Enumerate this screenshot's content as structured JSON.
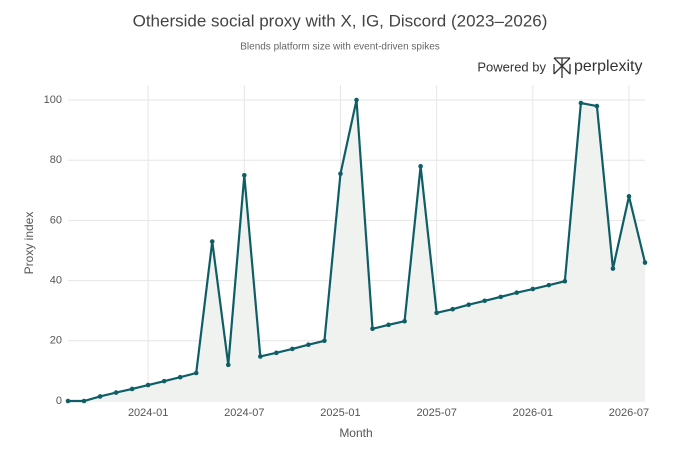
{
  "chart_data": {
    "type": "line",
    "title": "Otherside social proxy with X, IG, Discord (2023–2026)",
    "subtitle": "Blends platform size with event-driven spikes",
    "branding": {
      "prefix": "Powered by",
      "name": "perplexity"
    },
    "x_label": "Month",
    "y_label": "Proxy index",
    "x": [
      "2023-08",
      "2023-09",
      "2023-10",
      "2023-11",
      "2023-12",
      "2024-01",
      "2024-02",
      "2024-03",
      "2024-04",
      "2024-05",
      "2024-06",
      "2024-07",
      "2024-08",
      "2024-09",
      "2024-10",
      "2024-11",
      "2024-12",
      "2025-01",
      "2025-02",
      "2025-03",
      "2025-04",
      "2025-05",
      "2025-06",
      "2025-07",
      "2025-08",
      "2025-09",
      "2025-10",
      "2025-11",
      "2025-12",
      "2026-01",
      "2026-02",
      "2026-03",
      "2026-04",
      "2026-05",
      "2026-06",
      "2026-07",
      "2026-08"
    ],
    "series": [
      {
        "name": "Proxy index",
        "color": "#0f5e66",
        "fill": "#f0f2f0",
        "values": [
          0,
          0,
          1.5,
          2.8,
          4,
          5.3,
          6.6,
          7.9,
          9.3,
          53,
          12,
          75,
          14.8,
          16,
          17.3,
          18.7,
          20,
          75.5,
          100,
          24,
          25.3,
          26.5,
          78,
          29.3,
          30.5,
          32,
          33.3,
          34.6,
          36,
          37.2,
          38.5,
          39.8,
          99,
          98,
          44,
          68,
          46
        ]
      }
    ],
    "xlim": [
      "2023-08",
      "2026-08"
    ],
    "xticks": [
      "2024-01",
      "2024-07",
      "2025-01",
      "2025-07",
      "2026-01",
      "2026-07"
    ],
    "ylim": [
      0,
      105
    ],
    "yticks": [
      0,
      20,
      40,
      60,
      80,
      100
    ],
    "grid": true
  }
}
